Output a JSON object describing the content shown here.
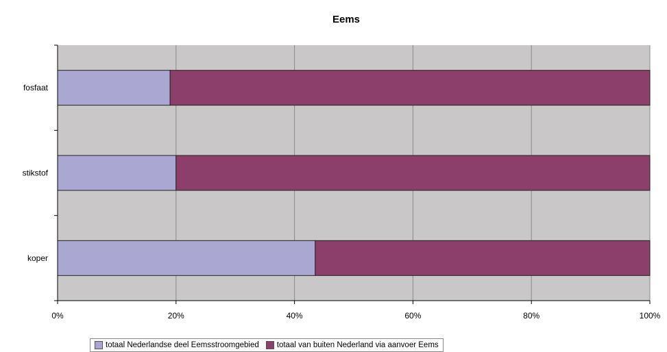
{
  "chart_data": {
    "type": "bar",
    "orientation": "horizontal",
    "stacking": "percent",
    "title": "Eems",
    "categories": [
      "fosfaat",
      "stikstof",
      "koper"
    ],
    "series": [
      {
        "name": "totaal Nederlandse deel Eemsstroomgebied",
        "values": [
          19,
          20,
          43.5
        ],
        "color": "#aaa7d3"
      },
      {
        "name": "totaal van buiten Nederland via aanvoer Eems",
        "values": [
          81,
          80,
          56.5
        ],
        "color": "#8c3f6b"
      }
    ],
    "xlim": [
      0,
      100
    ],
    "x_ticks": [
      "0%",
      "20%",
      "40%",
      "60%",
      "80%",
      "100%"
    ],
    "grid": true,
    "plot_background": "#c9c7c7",
    "legend_position": "bottom"
  }
}
